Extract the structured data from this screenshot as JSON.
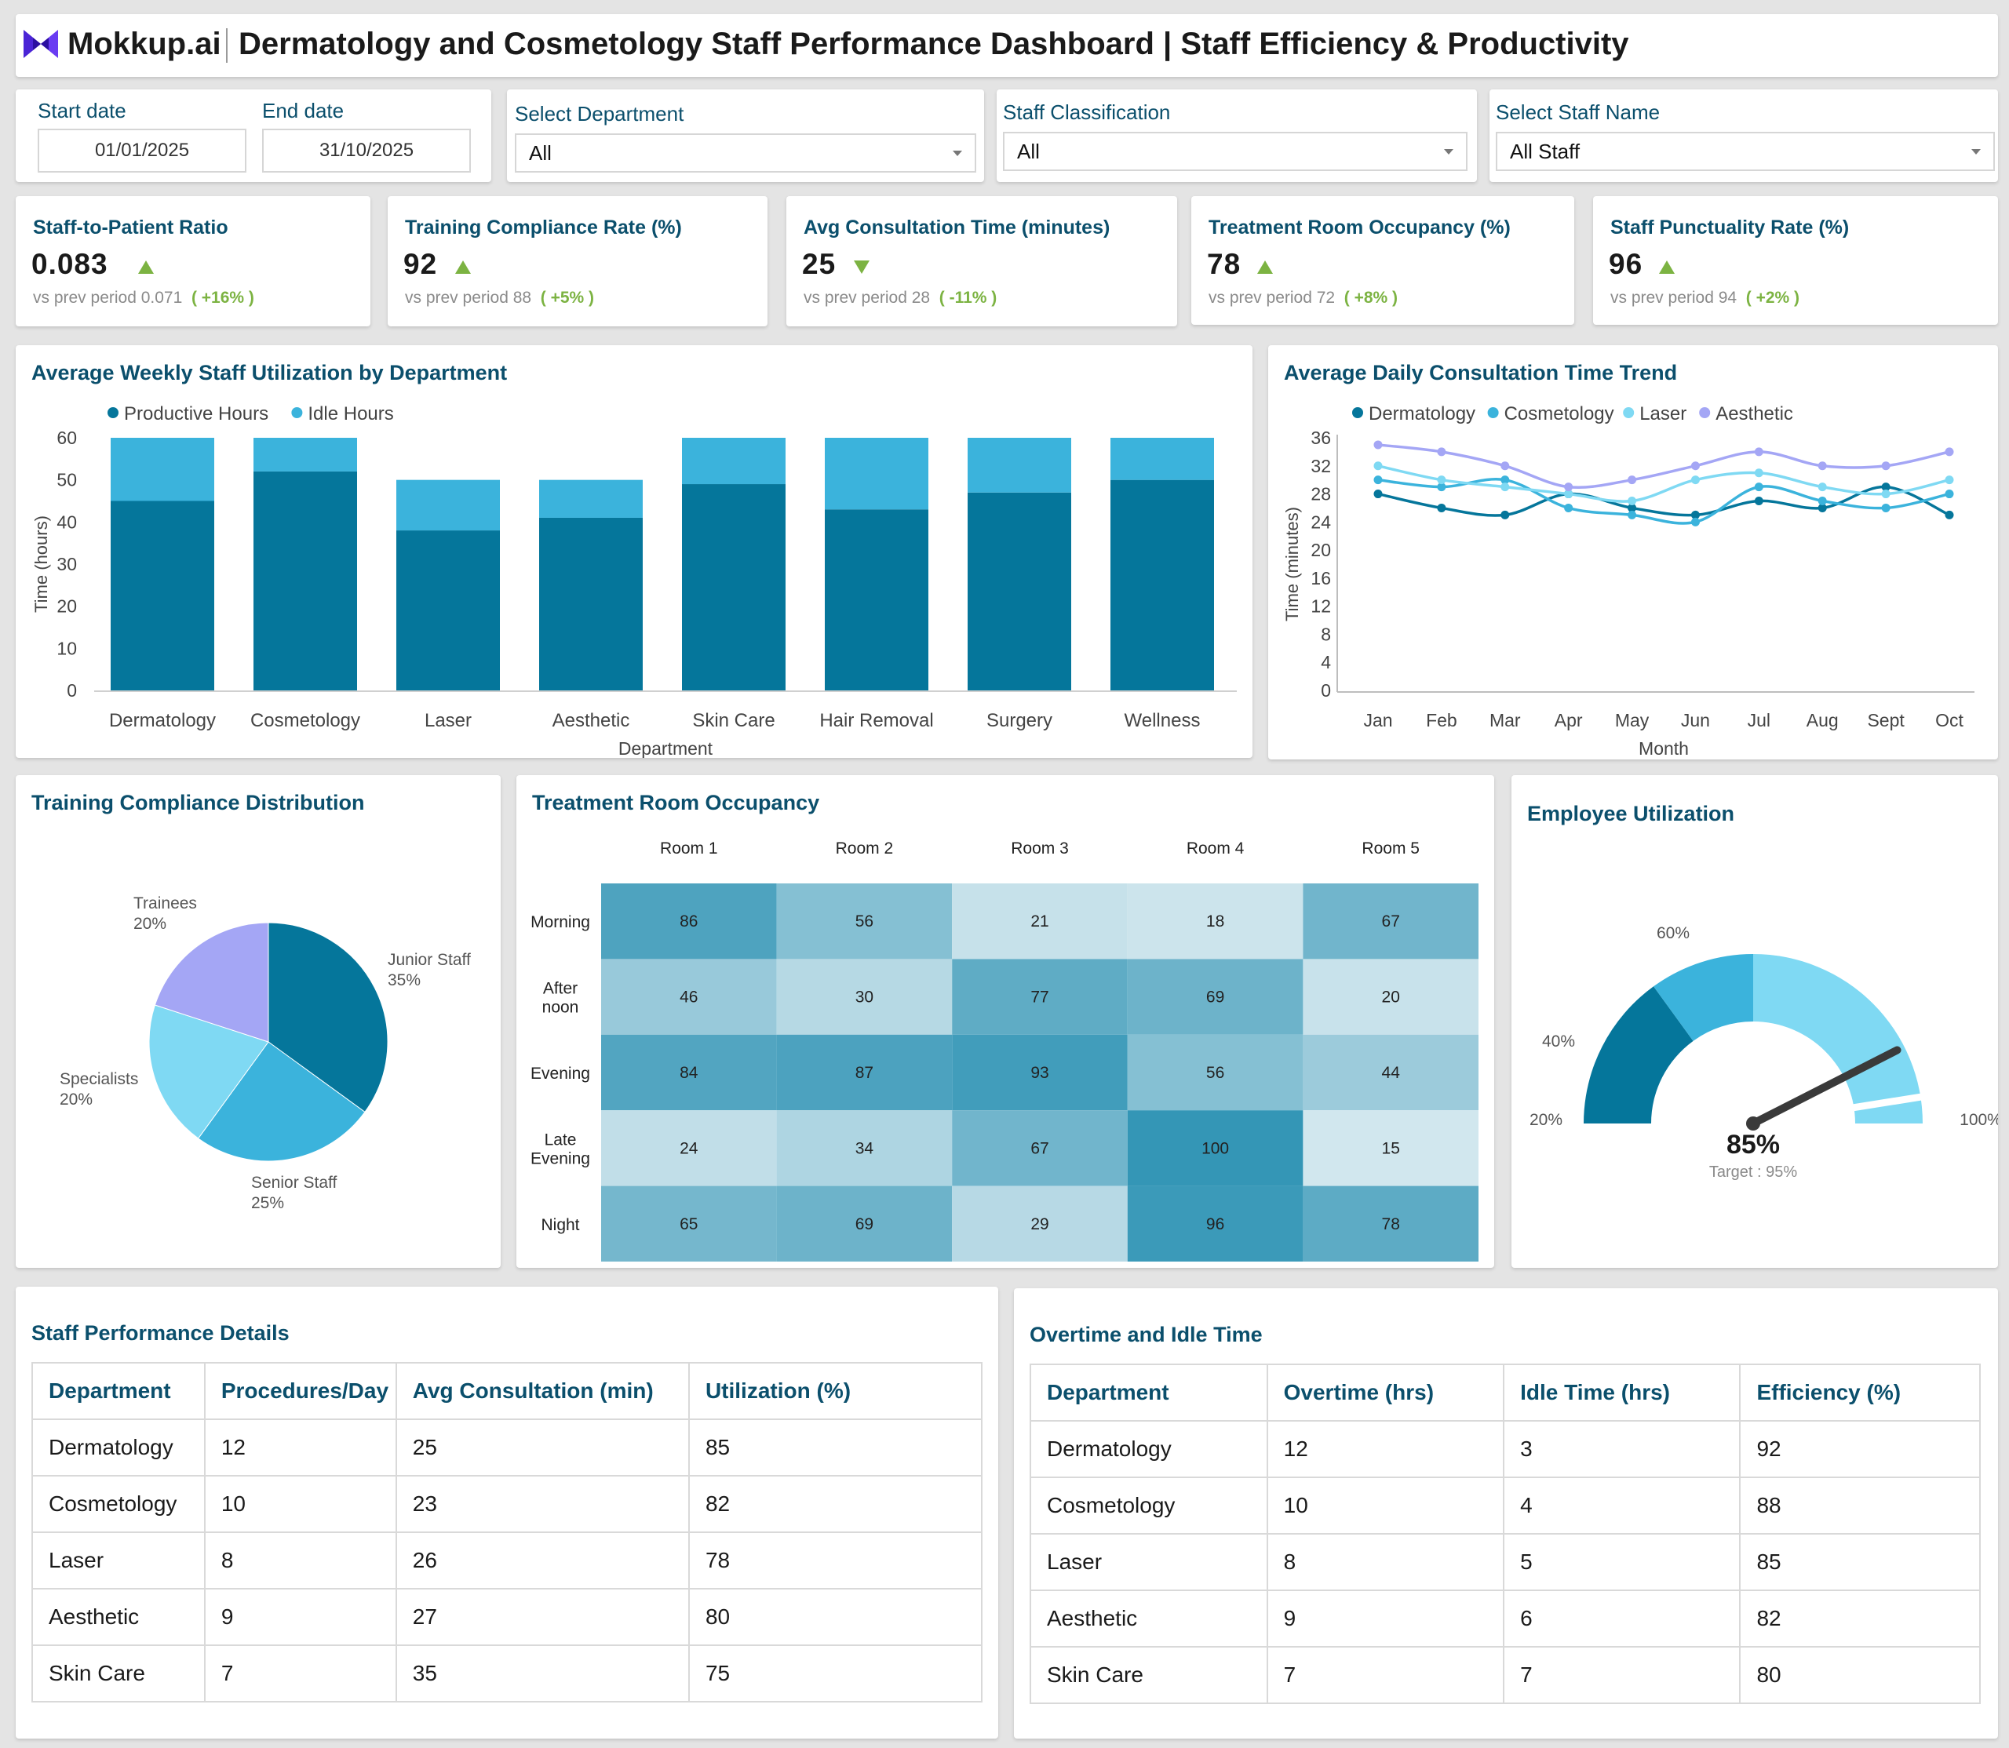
{
  "header": {
    "brand": "Mokkup.ai",
    "title": "Dermatology and Cosmetology Staff Performance Dashboard | Staff Efficiency & Productivity"
  },
  "filters": {
    "start_date_label": "Start date",
    "start_date": "01/01/2025",
    "end_date_label": "End date",
    "end_date": "31/10/2025",
    "department_label": "Select Department",
    "department_value": "All",
    "classification_label": "Staff Classification",
    "classification_value": "All",
    "staff_label": "Select Staff Name",
    "staff_value": "All Staff"
  },
  "kpis": [
    {
      "label": "Staff-to-Patient Ratio",
      "value": "0.083",
      "trend": "up",
      "prev_text": "vs prev period 0.071",
      "delta": "( +16% )"
    },
    {
      "label": "Training Compliance Rate (%)",
      "value": "92",
      "trend": "up",
      "prev_text": "vs prev period 88",
      "delta": "( +5% )"
    },
    {
      "label": "Avg Consultation Time (minutes)",
      "value": "25",
      "trend": "down",
      "prev_text": "vs prev period 28",
      "delta": "( -11% )"
    },
    {
      "label": "Treatment Room Occupancy (%)",
      "value": "78",
      "trend": "up",
      "prev_text": "vs prev period 72",
      "delta": "( +8% )"
    },
    {
      "label": "Staff Punctuality Rate (%)",
      "value": "96",
      "trend": "up",
      "prev_text": "vs prev period 94",
      "delta": "( +2% )"
    }
  ],
  "chart_data": [
    {
      "type": "bar",
      "stacked": true,
      "title": "Average Weekly Staff Utilization by Department",
      "xlabel": "Department",
      "ylabel": "Time (hours)",
      "ylim": [
        0,
        60
      ],
      "yticks": [
        0,
        10,
        20,
        30,
        40,
        50,
        60
      ],
      "legend_position": "top-left",
      "categories": [
        "Dermatology",
        "Cosmetology",
        "Laser",
        "Aesthetic",
        "Skin Care",
        "Hair Removal",
        "Surgery",
        "Wellness"
      ],
      "series": [
        {
          "name": "Productive Hours",
          "color": "#05769b",
          "values": [
            45,
            52,
            38,
            41,
            49,
            43,
            47,
            50
          ]
        },
        {
          "name": "Idle Hours",
          "color": "#3bb3dc",
          "values": [
            15,
            8,
            12,
            9,
            11,
            17,
            13,
            10
          ]
        }
      ]
    },
    {
      "type": "line",
      "title": "Average Daily Consultation Time Trend",
      "xlabel": "Month",
      "ylabel": "Time (minutes)",
      "ylim": [
        0,
        36
      ],
      "yticks": [
        0,
        4,
        8,
        12,
        16,
        20,
        24,
        28,
        32,
        36
      ],
      "legend_position": "top-left",
      "x": [
        "Jan",
        "Feb",
        "Mar",
        "Apr",
        "May",
        "Jun",
        "Jul",
        "Aug",
        "Sept",
        "Oct"
      ],
      "series": [
        {
          "name": "Dermatology",
          "color": "#05769b",
          "values": [
            28,
            26,
            25,
            28,
            26,
            25,
            27,
            26,
            29,
            25
          ]
        },
        {
          "name": "Cosmetology",
          "color": "#3bb3dc",
          "values": [
            30,
            29,
            30,
            26,
            25,
            24,
            29,
            27,
            26,
            28
          ]
        },
        {
          "name": "Laser",
          "color": "#7fd9f3",
          "values": [
            32,
            30,
            29,
            28,
            27,
            30,
            31,
            29,
            28,
            30
          ]
        },
        {
          "name": "Aesthetic",
          "color": "#a4a6f5",
          "values": [
            35,
            34,
            32,
            29,
            30,
            32,
            34,
            32,
            32,
            34
          ]
        }
      ]
    },
    {
      "type": "pie",
      "title": "Training Compliance Distribution",
      "slices": [
        {
          "name": "Junior Staff",
          "value": 35,
          "label": "35%",
          "color": "#05769b"
        },
        {
          "name": "Senior Staff",
          "value": 25,
          "label": "25%",
          "color": "#3bb3dc"
        },
        {
          "name": "Specialists",
          "value": 20,
          "label": "20%",
          "color": "#7fd9f3"
        },
        {
          "name": "Trainees",
          "value": 20,
          "label": "20%",
          "color": "#a4a6f5"
        }
      ]
    },
    {
      "type": "heatmap",
      "title": "Treatment Room Occupancy",
      "columns": [
        "Room 1",
        "Room 2",
        "Room 3",
        "Room 4",
        "Room 5"
      ],
      "rows": [
        {
          "label": [
            "Morning"
          ],
          "values": [
            86,
            56,
            21,
            18,
            67
          ]
        },
        {
          "label": [
            "After",
            "noon"
          ],
          "values": [
            46,
            30,
            77,
            69,
            20
          ]
        },
        {
          "label": [
            "Evening"
          ],
          "values": [
            84,
            87,
            93,
            56,
            44
          ]
        },
        {
          "label": [
            "Late",
            "Evening"
          ],
          "values": [
            24,
            34,
            67,
            100,
            15
          ]
        },
        {
          "label": [
            "Night"
          ],
          "values": [
            65,
            69,
            29,
            96,
            78
          ]
        }
      ]
    },
    {
      "type": "gauge",
      "title": "Employee Utilization",
      "value": 85,
      "value_label": "85%",
      "target": 95,
      "target_label": "Target : 95%",
      "tick_labels": [
        "20%",
        "40%",
        "60%",
        "100%"
      ],
      "bands": [
        {
          "from": 0,
          "to": 30,
          "color": "#05769b"
        },
        {
          "from": 30,
          "to": 50,
          "color": "#3bb3dc"
        },
        {
          "from": 50,
          "to": 100,
          "color": "#7fd9f3"
        }
      ]
    }
  ],
  "performance_table": {
    "title": "Staff Performance Details",
    "headers": [
      "Department",
      "Procedures/Day",
      "Avg Consultation (min)",
      "Utilization (%)"
    ],
    "rows": [
      [
        "Dermatology",
        "12",
        "25",
        "85"
      ],
      [
        "Cosmetology",
        "10",
        "23",
        "82"
      ],
      [
        "Laser",
        "8",
        "26",
        "78"
      ],
      [
        "Aesthetic",
        "9",
        "27",
        "80"
      ],
      [
        "Skin Care",
        "7",
        "35",
        "75"
      ]
    ]
  },
  "overtime_table": {
    "title": "Overtime and Idle Time",
    "headers": [
      "Department",
      "Overtime (hrs)",
      "Idle Time (hrs)",
      "Efficiency (%)"
    ],
    "rows": [
      [
        "Dermatology",
        "12",
        "3",
        "92"
      ],
      [
        "Cosmetology",
        "10",
        "4",
        "88"
      ],
      [
        "Laser",
        "8",
        "5",
        "85"
      ],
      [
        "Aesthetic",
        "9",
        "6",
        "82"
      ],
      [
        "Skin Care",
        "7",
        "7",
        "80"
      ]
    ]
  }
}
